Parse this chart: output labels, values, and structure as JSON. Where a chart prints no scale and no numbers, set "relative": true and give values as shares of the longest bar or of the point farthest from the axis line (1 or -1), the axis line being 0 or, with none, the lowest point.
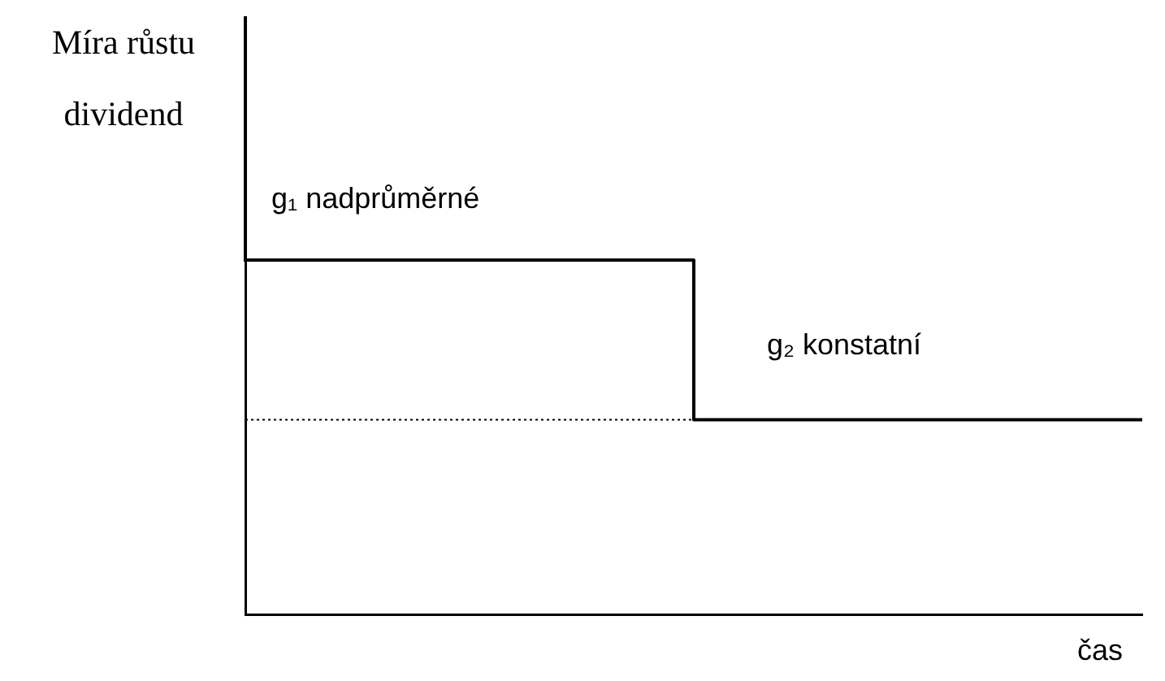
{
  "chart_data": {
    "type": "step",
    "ylabel": "Míra růstu dividend",
    "xlabel": "čas",
    "relative": true,
    "categories": [
      null,
      null,
      null
    ],
    "series": [
      {
        "color": "#000000",
        "values": [
          1,
          0.55,
          0.55
        ]
      }
    ],
    "ref_lines": [
      {
        "axis": "y",
        "value": 0.55,
        "color": "#000000",
        "line_style": "dotted"
      }
    ],
    "annotations": [
      "g₁ nadprůměrné",
      "g₂ konstatní"
    ],
    "grid": false,
    "legend": false,
    "marker": "none"
  }
}
